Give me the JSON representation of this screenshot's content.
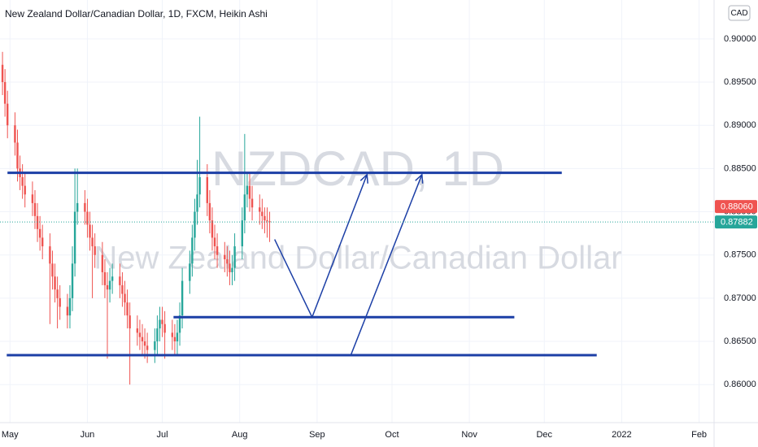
{
  "chart_data": {
    "type": "candlestick",
    "title": "New Zealand Dollar/Canadian Dollar, 1D, FXCM, Heikin Ashi",
    "currency": "CAD",
    "watermark": [
      "NZDCAD, 1D",
      "New Zealand Dollar/Canadian Dollar"
    ],
    "up_color": "#26a69a",
    "down_color": "#ef5350",
    "drawing_color": "#1c3fa6",
    "grid": true,
    "xlim": [
      -4,
      282
    ],
    "ylim": [
      0.8556,
      0.9045
    ],
    "xticks": [
      {
        "value": 0,
        "label": "May"
      },
      {
        "value": 31,
        "label": "Jun"
      },
      {
        "value": 61,
        "label": "Jul"
      },
      {
        "value": 92,
        "label": "Aug"
      },
      {
        "value": 123,
        "label": "Sep"
      },
      {
        "value": 153,
        "label": "Oct"
      },
      {
        "value": 184,
        "label": "Nov"
      },
      {
        "value": 214,
        "label": "Dec"
      },
      {
        "value": 245,
        "label": "2022"
      },
      {
        "value": 276,
        "label": "Feb"
      }
    ],
    "yticks": [
      {
        "value": 0.86,
        "label": "0.86000"
      },
      {
        "value": 0.865,
        "label": "0.86500"
      },
      {
        "value": 0.87,
        "label": "0.87000"
      },
      {
        "value": 0.875,
        "label": "0.87500"
      },
      {
        "value": 0.88,
        "label": "0.88000"
      },
      {
        "value": 0.885,
        "label": "0.88500"
      },
      {
        "value": 0.89,
        "label": "0.89000"
      },
      {
        "value": 0.895,
        "label": "0.89500"
      },
      {
        "value": 0.9,
        "label": "0.90000"
      }
    ],
    "price_labels": [
      {
        "value": 0.8806,
        "label": "0.88060",
        "color": "#ef5350"
      },
      {
        "value": 0.87882,
        "label": "0.87882",
        "color": "#26a69a"
      }
    ],
    "x": [
      -3,
      -2,
      -1,
      2,
      3,
      4,
      5,
      6,
      9,
      10,
      11,
      12,
      13,
      16,
      17,
      18,
      19,
      20,
      23,
      24,
      25,
      26,
      27,
      30,
      31,
      32,
      33,
      34,
      37,
      38,
      39,
      40,
      41,
      44,
      45,
      46,
      47,
      48,
      51,
      52,
      53,
      54,
      55,
      58,
      59,
      60,
      61,
      62,
      65,
      66,
      67,
      68,
      69,
      72,
      73,
      74,
      75,
      76,
      79,
      80,
      81,
      82,
      83,
      86,
      87,
      88,
      89,
      90,
      93,
      94,
      95,
      96,
      97,
      100,
      101,
      102,
      103,
      104
    ],
    "open": [
      0.897,
      0.895,
      0.8925,
      0.89,
      0.888,
      0.885,
      0.884,
      0.883,
      0.882,
      0.881,
      0.8795,
      0.878,
      0.877,
      0.876,
      0.874,
      0.8725,
      0.871,
      0.87,
      0.869,
      0.868,
      0.87,
      0.874,
      0.88,
      0.881,
      0.88,
      0.8785,
      0.877,
      0.876,
      0.875,
      0.873,
      0.8715,
      0.871,
      0.872,
      0.8725,
      0.8715,
      0.8705,
      0.8695,
      0.868,
      0.8665,
      0.866,
      0.8655,
      0.865,
      0.8645,
      0.864,
      0.865,
      0.8665,
      0.8675,
      0.867,
      0.866,
      0.8655,
      0.865,
      0.866,
      0.868,
      0.872,
      0.874,
      0.877,
      0.88,
      0.882,
      0.884,
      0.881,
      0.879,
      0.877,
      0.876,
      0.875,
      0.8745,
      0.874,
      0.873,
      0.8735,
      0.876,
      0.879,
      0.882,
      0.883,
      0.8815,
      0.8805,
      0.88,
      0.8795,
      0.879,
      0.8789
    ],
    "high": [
      0.8985,
      0.8965,
      0.894,
      0.8915,
      0.8895,
      0.8865,
      0.8855,
      0.8845,
      0.8835,
      0.8825,
      0.881,
      0.8795,
      0.8785,
      0.8775,
      0.8755,
      0.874,
      0.8725,
      0.8715,
      0.8705,
      0.8715,
      0.876,
      0.885,
      0.885,
      0.8825,
      0.8815,
      0.88,
      0.8785,
      0.8775,
      0.8765,
      0.8745,
      0.873,
      0.8735,
      0.874,
      0.874,
      0.873,
      0.872,
      0.871,
      0.8695,
      0.868,
      0.8675,
      0.867,
      0.8665,
      0.866,
      0.8665,
      0.868,
      0.869,
      0.869,
      0.8685,
      0.8675,
      0.867,
      0.8675,
      0.8695,
      0.8735,
      0.8755,
      0.8785,
      0.8815,
      0.886,
      0.891,
      0.8855,
      0.8825,
      0.8805,
      0.8785,
      0.8775,
      0.8765,
      0.876,
      0.8755,
      0.875,
      0.8775,
      0.8805,
      0.889,
      0.8845,
      0.8845,
      0.883,
      0.882,
      0.8815,
      0.8805,
      0.8805,
      0.88
    ],
    "low": [
      0.8935,
      0.891,
      0.8885,
      0.8865,
      0.8835,
      0.8825,
      0.8815,
      0.8805,
      0.8795,
      0.878,
      0.8765,
      0.8755,
      0.8745,
      0.867,
      0.871,
      0.8695,
      0.8665,
      0.8675,
      0.8665,
      0.8665,
      0.8685,
      0.8725,
      0.8785,
      0.8785,
      0.877,
      0.8755,
      0.87,
      0.8735,
      0.8715,
      0.87,
      0.863,
      0.8695,
      0.8705,
      0.87,
      0.869,
      0.868,
      0.8665,
      0.86,
      0.8645,
      0.864,
      0.8635,
      0.863,
      0.8625,
      0.8625,
      0.8635,
      0.865,
      0.8655,
      0.863,
      0.864,
      0.8635,
      0.8635,
      0.8645,
      0.8665,
      0.8705,
      0.8725,
      0.8755,
      0.8785,
      0.8805,
      0.8795,
      0.8775,
      0.8755,
      0.8745,
      0.8735,
      0.873,
      0.8725,
      0.8715,
      0.8715,
      0.872,
      0.8745,
      0.8775,
      0.8805,
      0.88,
      0.879,
      0.8785,
      0.878,
      0.8775,
      0.877,
      0.8765
    ],
    "close": [
      0.895,
      0.8925,
      0.89,
      0.888,
      0.885,
      0.884,
      0.883,
      0.882,
      0.881,
      0.8795,
      0.878,
      0.877,
      0.876,
      0.874,
      0.8725,
      0.871,
      0.87,
      0.869,
      0.868,
      0.87,
      0.874,
      0.88,
      0.881,
      0.88,
      0.8785,
      0.877,
      0.876,
      0.875,
      0.873,
      0.8715,
      0.871,
      0.872,
      0.8725,
      0.8715,
      0.8705,
      0.8695,
      0.868,
      0.8665,
      0.866,
      0.8655,
      0.865,
      0.8645,
      0.864,
      0.865,
      0.8665,
      0.8675,
      0.867,
      0.866,
      0.8655,
      0.865,
      0.866,
      0.868,
      0.872,
      0.874,
      0.877,
      0.88,
      0.882,
      0.884,
      0.881,
      0.879,
      0.877,
      0.876,
      0.875,
      0.8745,
      0.874,
      0.873,
      0.8735,
      0.876,
      0.879,
      0.882,
      0.883,
      0.8815,
      0.8805,
      0.88,
      0.8795,
      0.879,
      0.8789,
      0.8788
    ],
    "hlines": [
      {
        "y": 0.8845,
        "x": [
          -1,
          221
        ]
      },
      {
        "y": 0.8678,
        "x": [
          65.5,
          202
        ]
      },
      {
        "y": 0.8634,
        "x": [
          -1.3,
          235
        ]
      }
    ],
    "arrows": [
      {
        "x": [
          106,
          121,
          143
        ],
        "y": [
          0.8768,
          0.8678,
          0.8843
        ]
      },
      {
        "x": [
          136.5,
          165
        ],
        "y": [
          0.8634,
          0.8843
        ]
      }
    ]
  }
}
